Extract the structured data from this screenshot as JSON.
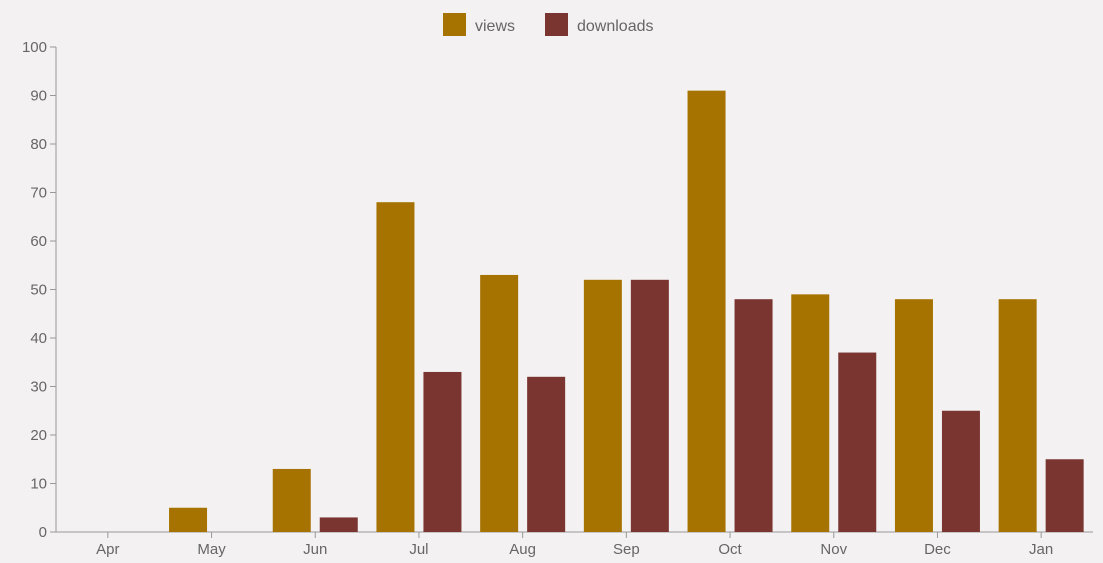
{
  "chart_data": {
    "type": "bar",
    "categories": [
      "Apr",
      "May",
      "Jun",
      "Jul",
      "Aug",
      "Sep",
      "Oct",
      "Nov",
      "Dec",
      "Jan"
    ],
    "series": [
      {
        "name": "views",
        "color": "#a77300",
        "values": [
          0,
          5,
          13,
          68,
          53,
          52,
          91,
          49,
          48,
          48
        ]
      },
      {
        "name": "downloads",
        "color": "#7a3530",
        "values": [
          0,
          0,
          3,
          33,
          32,
          52,
          48,
          37,
          25,
          15
        ]
      }
    ],
    "ylim": [
      0,
      100
    ],
    "yticks": [
      0,
      10,
      20,
      30,
      40,
      50,
      60,
      70,
      80,
      90,
      100
    ],
    "grid": false,
    "legend_position": "top-center",
    "title": "",
    "xlabel": "",
    "ylabel": ""
  },
  "colors": {
    "background": "#f3f1f2",
    "axis": "#999999",
    "text": "#666666"
  }
}
